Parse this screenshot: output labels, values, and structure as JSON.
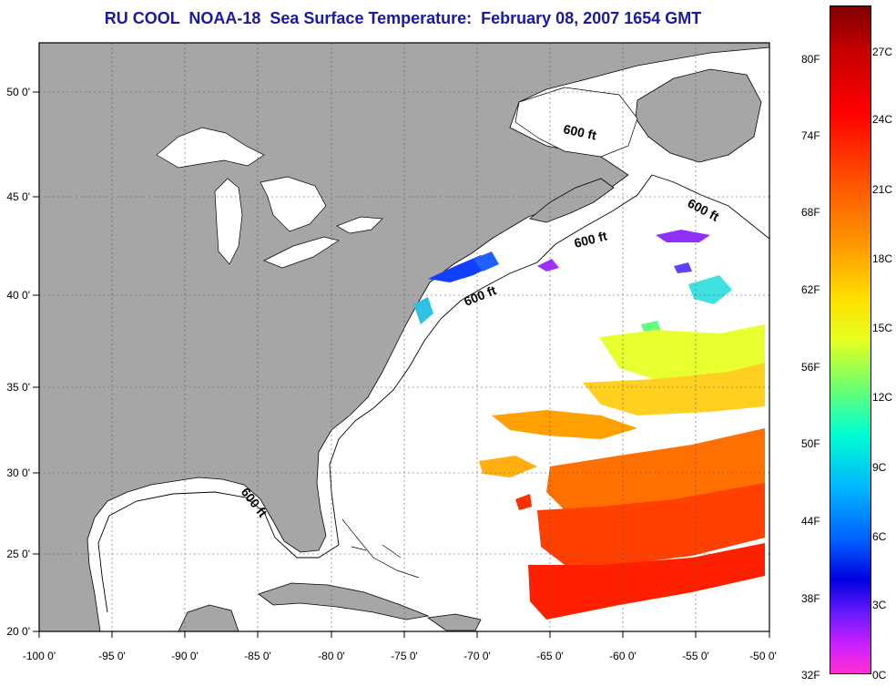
{
  "title": "RU COOL  NOAA-18  Sea Surface Temperature:  February 08, 2007 1654 GMT",
  "map": {
    "lon_ticks": [
      "-100 0'",
      "-95 0'",
      "-90 0'",
      "-85 0'",
      "-80 0'",
      "-75 0'",
      "-70 0'",
      "-65 0'",
      "-60 0'",
      "-55 0'",
      "-50 0'"
    ],
    "lat_ticks": [
      "50 0'",
      "45 0'",
      "40 0'",
      "35 0'",
      "30 0'",
      "25 0'",
      "20 0'"
    ],
    "contour_labels": [
      "600 ft",
      "600 ft",
      "600 ft",
      "600 ft",
      "600 ft"
    ],
    "colors": {
      "land": "#a6a6a6",
      "water": "#ffffff",
      "grid": "#555555"
    }
  },
  "colorbar": {
    "fahrenheit": [
      "80F",
      "74F",
      "68F",
      "62F",
      "56F",
      "50F",
      "44F",
      "38F",
      "32F"
    ],
    "celsius": [
      "27C",
      "24C",
      "21C",
      "18C",
      "15C",
      "12C",
      "9C",
      "6C",
      "3C",
      "0C"
    ]
  }
}
